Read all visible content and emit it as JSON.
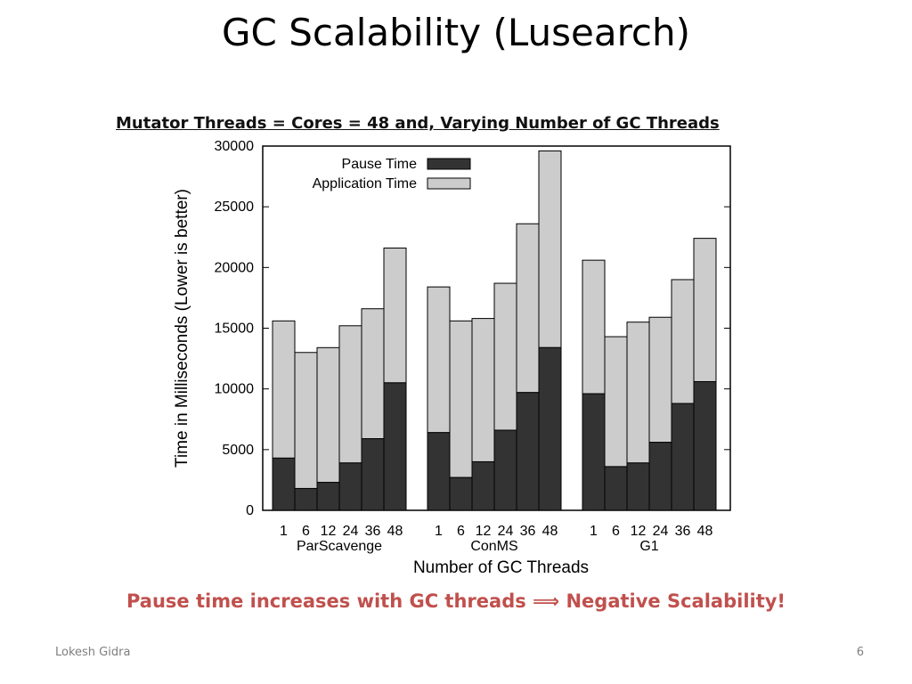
{
  "slide": {
    "title": "GC Scalability (Lusearch)",
    "subtitle": "Mutator Threads = Cores = 48 and, Varying Number of GC Threads",
    "conclusion_left": "Pause time increases with GC threads",
    "conclusion_arrow": "⟹",
    "conclusion_right": "Negative Scalability!",
    "footer_author": "Lokesh Gidra",
    "page_number": "6"
  },
  "colors": {
    "pause": "#333333",
    "application": "#cccccc",
    "conclusion": "#c0504d"
  },
  "chart_data": {
    "type": "bar",
    "stacked": true,
    "xlabel": "Number of GC Threads",
    "ylabel": "Time in Milliseconds (Lower is better)",
    "ylim": [
      0,
      30000
    ],
    "yticks": [
      0,
      5000,
      10000,
      15000,
      20000,
      25000,
      30000
    ],
    "grid": false,
    "legend_position": "top-left",
    "groups": [
      {
        "name": "ParScavenge",
        "categories": [
          "1",
          "6",
          "12",
          "24",
          "36",
          "48"
        ]
      },
      {
        "name": "ConMS",
        "categories": [
          "1",
          "6",
          "12",
          "24",
          "36",
          "48"
        ]
      },
      {
        "name": "G1",
        "categories": [
          "1",
          "6",
          "12",
          "24",
          "36",
          "48"
        ]
      }
    ],
    "series": [
      {
        "name": "Pause Time",
        "values": [
          [
            4300,
            1800,
            2300,
            3900,
            5900,
            10500
          ],
          [
            6400,
            2700,
            4000,
            6600,
            9700,
            13400
          ],
          [
            9600,
            3600,
            3900,
            5600,
            8800,
            10600
          ]
        ]
      },
      {
        "name": "Application Time",
        "values": [
          [
            11300,
            11200,
            11100,
            11300,
            10700,
            11100
          ],
          [
            12000,
            12900,
            11800,
            12100,
            13900,
            16200
          ],
          [
            11000,
            10700,
            11600,
            10300,
            10200,
            11800
          ]
        ]
      }
    ]
  }
}
